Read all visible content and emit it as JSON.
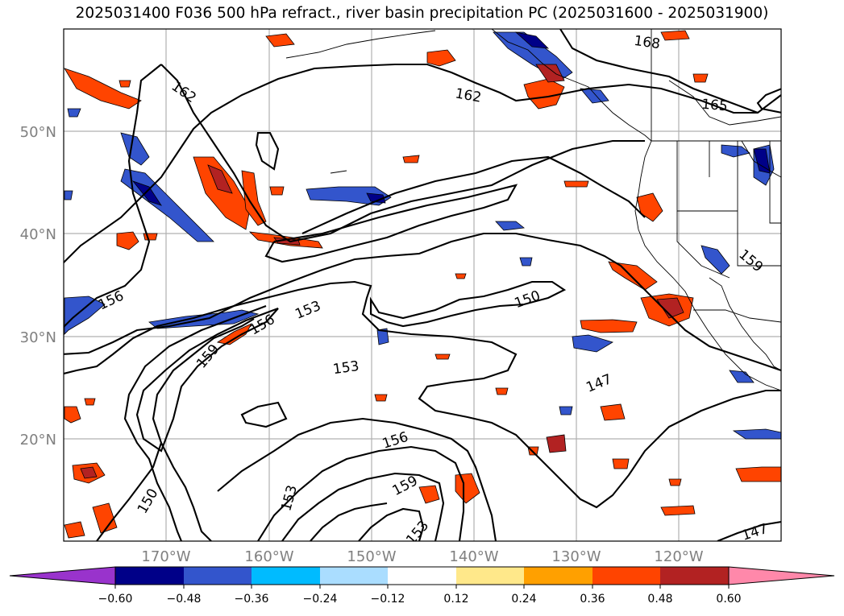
{
  "title": "2025031400 F036 500 hPa refract., river basin precipitation PC (2025031600 - 2025031900)",
  "map": {
    "lon_ticks": [
      "170°W",
      "160°W",
      "150°W",
      "140°W",
      "130°W",
      "120°W"
    ],
    "lat_ticks": [
      "50°N",
      "40°N",
      "30°N",
      "20°N"
    ],
    "grid": true,
    "contour_labels": [
      "162",
      "162",
      "168",
      "165",
      "156",
      "153",
      "156",
      "159",
      "153",
      "150",
      "159",
      "147",
      "156",
      "159",
      "153",
      "150",
      "153",
      "147"
    ]
  },
  "colorbar": {
    "ticks": [
      "−0.60",
      "−0.48",
      "−0.36",
      "−0.24",
      "−0.12",
      "0.12",
      "0.24",
      "0.36",
      "0.48",
      "0.60"
    ],
    "colors": [
      "#9933cc",
      "#000088",
      "#3355cc",
      "#00bbff",
      "#aaddff",
      "#ffffff",
      "#ffe88a",
      "#ffa000",
      "#ff4400",
      "#b22222",
      "#ff88aa"
    ]
  }
}
